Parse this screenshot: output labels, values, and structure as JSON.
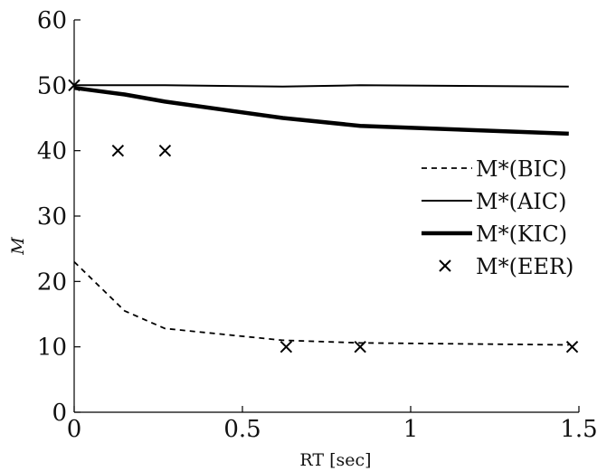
{
  "chart_data": {
    "type": "line",
    "title": "",
    "xlabel": "RT [sec]",
    "ylabel": "M",
    "xlim": [
      0,
      1.5
    ],
    "ylim": [
      0,
      60
    ],
    "xticks": [
      0,
      0.5,
      1,
      1.5
    ],
    "xtick_labels": [
      "0",
      "0.5",
      "1",
      "1.5"
    ],
    "yticks": [
      0,
      10,
      20,
      30,
      40,
      50,
      60
    ],
    "ytick_labels": [
      "0",
      "10",
      "20",
      "30",
      "40",
      "50",
      "60"
    ],
    "grid": false,
    "legend_position": "right",
    "series": [
      {
        "name": "M*(BIC)",
        "style": "dashed",
        "color": "#000000",
        "x": [
          0.0,
          0.15,
          0.27,
          0.62,
          0.85,
          1.47
        ],
        "y": [
          23,
          15.5,
          12.8,
          11,
          10.6,
          10.3
        ]
      },
      {
        "name": "M*(AIC)",
        "style": "solid-thin",
        "color": "#000000",
        "x": [
          0.0,
          0.15,
          0.27,
          0.62,
          0.85,
          1.47
        ],
        "y": [
          50,
          50,
          50,
          49.8,
          50,
          49.8
        ]
      },
      {
        "name": "M*(KIC)",
        "style": "solid-thick",
        "color": "#000000",
        "x": [
          0.0,
          0.15,
          0.27,
          0.62,
          0.85,
          1.47
        ],
        "y": [
          49.6,
          48.6,
          47.5,
          45,
          43.8,
          42.6
        ]
      },
      {
        "name": "M*(EER)",
        "style": "marker-x",
        "color": "#000000",
        "x": [
          0.0,
          0.13,
          0.27,
          0.63,
          0.85,
          1.48
        ],
        "y": [
          50,
          40,
          40,
          10,
          10,
          10
        ]
      }
    ]
  }
}
